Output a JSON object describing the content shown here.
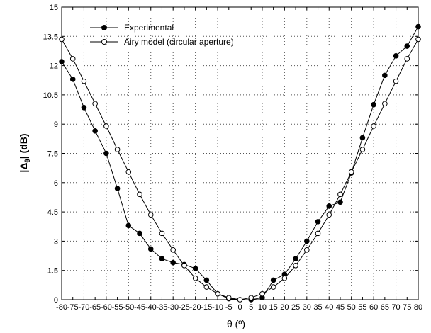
{
  "chart_data": {
    "type": "line",
    "title": "",
    "xlabel": "θ (º)",
    "ylabel": "|Δθ| (dB)",
    "ylabel_main": "|Δ",
    "ylabel_sub": "θ",
    "ylabel_tail": "| (dB)",
    "xlim": [
      -80,
      80
    ],
    "ylim": [
      0,
      15
    ],
    "x_ticks": [
      -80,
      -75,
      -70,
      -65,
      -60,
      -55,
      -50,
      -45,
      -40,
      -35,
      -30,
      -25,
      -20,
      -15,
      -10,
      -5,
      0,
      5,
      10,
      15,
      20,
      25,
      30,
      35,
      40,
      45,
      50,
      55,
      60,
      65,
      70,
      75,
      80
    ],
    "x_tick_labels": [
      "-80",
      "-75",
      "-70",
      "-65",
      "-60",
      "-55",
      "-50",
      "-45",
      "-40",
      "-35",
      "-30",
      "-25",
      "-20",
      "-15",
      "-10",
      "-5",
      "0",
      "5",
      "10",
      "15",
      "20",
      "25",
      "30",
      "35",
      "40",
      "45",
      "50",
      "55",
      "60",
      "65",
      "70",
      "75",
      "80"
    ],
    "y_ticks": [
      0,
      1.5,
      3,
      4.5,
      6,
      7.5,
      9,
      10.5,
      12,
      13.5,
      15
    ],
    "y_tick_labels": [
      "0",
      "1.5",
      "3",
      "4.5",
      "6",
      "7.5",
      "9",
      "10.5",
      "12",
      "13.5",
      "15"
    ],
    "grid": true,
    "legend_position": "top-left",
    "x": [
      -80,
      -75,
      -70,
      -65,
      -60,
      -55,
      -50,
      -45,
      -40,
      -35,
      -30,
      -25,
      -20,
      -15,
      -10,
      -5,
      0,
      5,
      10,
      15,
      20,
      25,
      30,
      35,
      40,
      45,
      50,
      55,
      60,
      65,
      70,
      75,
      80
    ],
    "series": [
      {
        "name": "Experimental",
        "marker": "filled-circle",
        "values": [
          12.2,
          11.3,
          9.85,
          8.65,
          7.5,
          5.7,
          3.8,
          3.4,
          2.6,
          2.1,
          1.9,
          1.8,
          1.6,
          1.0,
          0.3,
          0.05,
          0.0,
          0.0,
          0.1,
          1.0,
          1.3,
          2.1,
          3.0,
          4.0,
          4.8,
          5.0,
          6.5,
          8.3,
          10.0,
          11.5,
          12.5,
          13.0,
          14.0
        ]
      },
      {
        "name": "Airy model (circular aperture)",
        "marker": "open-circle",
        "values": [
          13.35,
          12.35,
          11.2,
          10.05,
          8.9,
          7.7,
          6.55,
          5.4,
          4.35,
          3.4,
          2.55,
          1.75,
          1.1,
          0.65,
          0.3,
          0.1,
          0.0,
          0.1,
          0.3,
          0.65,
          1.1,
          1.75,
          2.55,
          3.4,
          4.35,
          5.4,
          6.55,
          7.7,
          8.9,
          10.05,
          11.2,
          12.35,
          13.35
        ]
      }
    ]
  },
  "colors": {
    "line": "#000000",
    "grid": "#555555",
    "open_marker_fill": "#ffffff"
  }
}
